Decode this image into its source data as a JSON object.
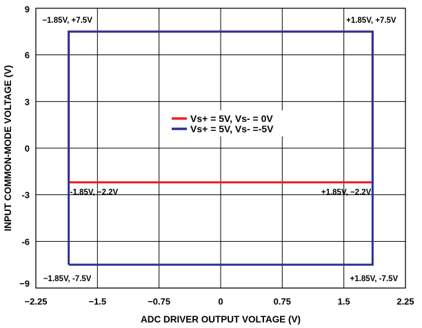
{
  "chart_data": {
    "type": "line",
    "xlabel": "ADC DRIVER OUTPUT VOLTAGE (V)",
    "ylabel": "INPUT COMMON-MODE VOLTAGE (V)",
    "xlim": [
      -2.25,
      2.25
    ],
    "ylim": [
      -9,
      9
    ],
    "x_ticks": [
      -2.25,
      -1.5,
      -0.75,
      0,
      0.75,
      1.5,
      2.25
    ],
    "x_tick_labels": [
      "−2.25",
      "−1.5",
      "−0.75",
      "0",
      "0.75",
      "1.5",
      "2.25"
    ],
    "y_ticks": [
      -9,
      -6,
      -3,
      0,
      3,
      6,
      9
    ],
    "y_tick_labels": [
      "−9",
      "-6",
      "-3",
      "0",
      "3",
      "6",
      "9"
    ],
    "grid": true,
    "legend_position": "center",
    "series": [
      {
        "name": "Vs+ = 5V, Vs- = 0V",
        "color": "#ee1c24",
        "x": [
          -1.85,
          -1.85,
          1.85,
          1.85,
          -1.85
        ],
        "y": [
          -2.2,
          7.5,
          7.5,
          -2.2,
          -2.2
        ]
      },
      {
        "name": "Vs+ = 5V, Vs- =-5V",
        "color": "#2e3192",
        "x": [
          -1.85,
          -1.85,
          1.85,
          1.85,
          -1.85
        ],
        "y": [
          -7.5,
          7.5,
          7.5,
          -7.5,
          -7.5
        ]
      }
    ],
    "annotations": [
      {
        "text": "−1.85V, +7.5V",
        "x": -1.85,
        "y": 7.5,
        "anchor": "above-left"
      },
      {
        "text": "+1.85V, +7.5V",
        "x": 1.85,
        "y": 7.5,
        "anchor": "above-right"
      },
      {
        "text": "-1.85V, −2.2V",
        "x": -1.85,
        "y": -2.2,
        "anchor": "below-right"
      },
      {
        "text": "+1.85V, −2.2V",
        "x": 1.85,
        "y": -2.2,
        "anchor": "below-left"
      },
      {
        "text": "−1.85V, -7.5V",
        "x": -1.85,
        "y": -7.5,
        "anchor": "below-left"
      },
      {
        "text": "+1.85V, -7.5V",
        "x": 1.85,
        "y": -7.5,
        "anchor": "below-right"
      }
    ]
  }
}
